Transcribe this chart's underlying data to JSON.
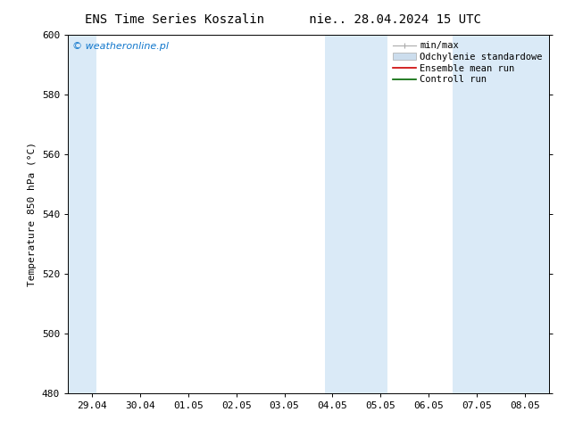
{
  "title_left": "ENS Time Series Koszalin",
  "title_right": "nie.. 28.04.2024 15 UTC",
  "ylabel": "Temperature 850 hPa (°C)",
  "xlim_dates": [
    "29.04",
    "30.04",
    "01.05",
    "02.05",
    "03.05",
    "04.05",
    "05.05",
    "06.05",
    "07.05",
    "08.05"
  ],
  "ylim": [
    480,
    600
  ],
  "yticks": [
    480,
    500,
    520,
    540,
    560,
    580,
    600
  ],
  "band_color": "#daeaf7",
  "watermark": "© weatheronline.pl",
  "watermark_color": "#1177cc",
  "legend_items": [
    {
      "label": "min/max",
      "color": "#aaaaaa"
    },
    {
      "label": "Odchylenie standardowe",
      "color": "#ccdded"
    },
    {
      "label": "Ensemble mean run",
      "color": "#cc0000"
    },
    {
      "label": "Controll run",
      "color": "#006600"
    }
  ],
  "background_color": "#ffffff",
  "tick_label_fontsize": 8,
  "title_fontsize": 10,
  "ylabel_fontsize": 8,
  "legend_fontsize": 7.5
}
